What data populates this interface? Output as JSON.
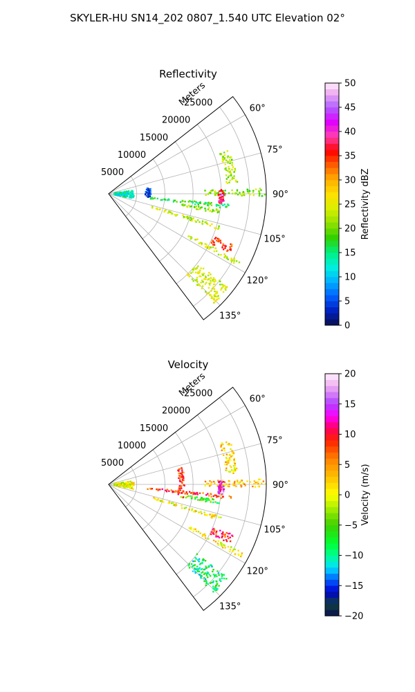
{
  "figure": {
    "suptitle": "SKYLER-HU  SN14_202  0807_1.540 UTC Elevation 02°"
  },
  "chart_data": [
    {
      "type": "heatmap",
      "title": "Reflectivity",
      "range_label": "Meters",
      "range_ticks": [
        5000,
        10000,
        15000,
        20000,
        25000
      ],
      "range_max": 28000,
      "azimuth_ticks": [
        "60°",
        "75°",
        "90°",
        "105°",
        "120°",
        "135°"
      ],
      "azimuth_tick_values": [
        60,
        75,
        90,
        105,
        120,
        135
      ],
      "azimuth_range": [
        52,
        143
      ],
      "colorbar": {
        "label": "Reflectivity dBZ",
        "min": 0,
        "max": 50,
        "ticks": [
          "0",
          "5",
          "10",
          "15",
          "20",
          "25",
          "30",
          "35",
          "40",
          "45",
          "50"
        ],
        "tick_values": [
          0,
          5,
          10,
          15,
          20,
          25,
          30,
          35,
          40,
          45,
          50
        ]
      },
      "features": [
        {
          "az": [
            88,
            91
          ],
          "r": [
            17000,
            28000
          ],
          "value": 21
        },
        {
          "az": [
            95,
            97
          ],
          "r": [
            7000,
            22000
          ],
          "value": 17
        },
        {
          "az": [
            98,
            100
          ],
          "r": [
            13000,
            20000
          ],
          "value": 21
        },
        {
          "az": [
            106,
            108
          ],
          "r": [
            8000,
            21000
          ],
          "value": 23
        },
        {
          "az": [
            117,
            119
          ],
          "r": [
            16000,
            27000
          ],
          "value": 24
        },
        {
          "az": [
            128,
            136
          ],
          "r": [
            20000,
            27000
          ],
          "value": 24
        },
        {
          "az": [
            82,
            101
          ],
          "r": [
            1000,
            4500
          ],
          "value": 13
        },
        {
          "az": [
            82,
            98
          ],
          "r": [
            6500,
            7500
          ],
          "value": 4
        },
        {
          "az": [
            88,
            95
          ],
          "r": [
            19500,
            20500
          ],
          "value": 38
        },
        {
          "az": [
            70,
            85
          ],
          "r": [
            21000,
            23000
          ],
          "value": 22
        },
        {
          "az": [
            112,
            116
          ],
          "r": [
            20000,
            24000
          ],
          "value": 34
        }
      ]
    },
    {
      "type": "heatmap",
      "title": "Velocity",
      "range_label": "Meters",
      "range_ticks": [
        5000,
        10000,
        15000,
        20000,
        25000
      ],
      "range_max": 28000,
      "azimuth_ticks": [
        "60°",
        "75°",
        "90°",
        "105°",
        "120°",
        "135°"
      ],
      "azimuth_tick_values": [
        60,
        75,
        90,
        105,
        120,
        135
      ],
      "azimuth_range": [
        52,
        143
      ],
      "colorbar": {
        "label": "Velocity (m/s)",
        "min": -20,
        "max": 20,
        "ticks": [
          "−20",
          "−15",
          "−10",
          "−5",
          "0",
          "5",
          "10",
          "15",
          "20"
        ],
        "tick_values": [
          -20,
          -15,
          -10,
          -5,
          0,
          5,
          10,
          15,
          20
        ]
      },
      "features": [
        {
          "az": [
            88,
            91
          ],
          "r": [
            17000,
            28000
          ],
          "value": 3
        },
        {
          "az": [
            95,
            97
          ],
          "r": [
            7000,
            22000
          ],
          "value": 8
        },
        {
          "az": [
            98,
            100
          ],
          "r": [
            13000,
            20000
          ],
          "value": -6
        },
        {
          "az": [
            106,
            108
          ],
          "r": [
            8000,
            21000
          ],
          "value": 1
        },
        {
          "az": [
            117,
            119
          ],
          "r": [
            16000,
            27000
          ],
          "value": 1
        },
        {
          "az": [
            128,
            136
          ],
          "r": [
            20000,
            27000
          ],
          "value": -9
        },
        {
          "az": [
            82,
            101
          ],
          "r": [
            1000,
            4500
          ],
          "value": 0
        },
        {
          "az": [
            75,
            100
          ],
          "r": [
            12500,
            13500
          ],
          "value": 8
        },
        {
          "az": [
            88,
            95
          ],
          "r": [
            19500,
            20500
          ],
          "value": 14
        },
        {
          "az": [
            70,
            85
          ],
          "r": [
            21000,
            23000
          ],
          "value": 2
        },
        {
          "az": [
            112,
            116
          ],
          "r": [
            20000,
            24000
          ],
          "value": 10
        }
      ]
    }
  ]
}
